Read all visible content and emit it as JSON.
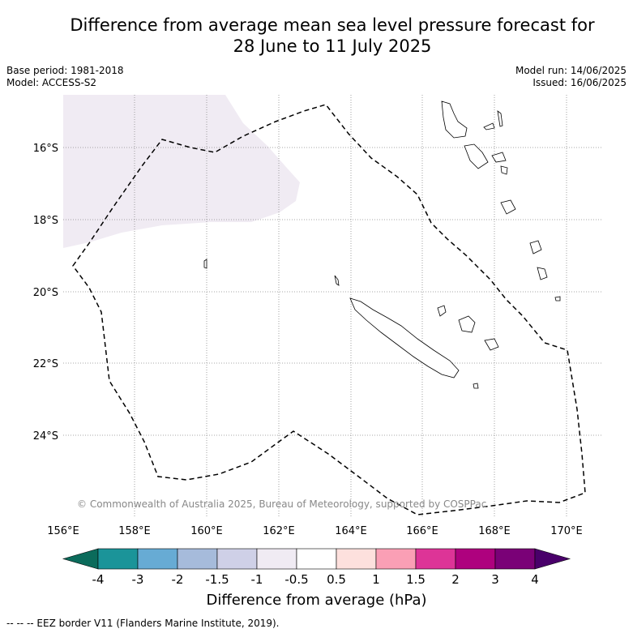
{
  "title": {
    "line1": "Difference from average mean sea level pressure forecast for",
    "line2": "28 June to 11 July 2025"
  },
  "info": {
    "base_period": "Base period: 1981-2018",
    "model": "Model: ACCESS-S2",
    "model_run": "Model run: 14/06/2025",
    "issued": "Issued: 16/06/2025"
  },
  "map": {
    "lat_labels": [
      "16°S",
      "18°S",
      "20°S",
      "22°S",
      "24°S"
    ],
    "lon_labels": [
      "156°E",
      "158°E",
      "160°E",
      "162°E",
      "164°E",
      "166°E",
      "168°E",
      "170°E"
    ],
    "copyright": "© Commonwealth of Australia 2025, Bureau of Meteorology, supported by COSPPac",
    "anomaly_fill_color": "#f0ebf3",
    "eez_line_color": "#000000"
  },
  "colorbar": {
    "title": "Difference from average (hPa)",
    "ticks": [
      "-4",
      "-3",
      "-2",
      "-1.5",
      "-1",
      "-0.5",
      "0.5",
      "1",
      "1.5",
      "2",
      "3",
      "4"
    ],
    "low_extend_color": "#0b6b5b",
    "colors": [
      "#1b9499",
      "#67abd4",
      "#a6bbdb",
      "#cfd0e7",
      "#f0ebf3",
      "#ffffff",
      "#fde0dd",
      "#fa9fb5",
      "#dd3497",
      "#ae017e",
      "#7a0177"
    ],
    "high_extend_color": "#49006a"
  },
  "legend_note": "--  --  -- EEZ border V11 (Flanders Marine Institute, 2019)."
}
